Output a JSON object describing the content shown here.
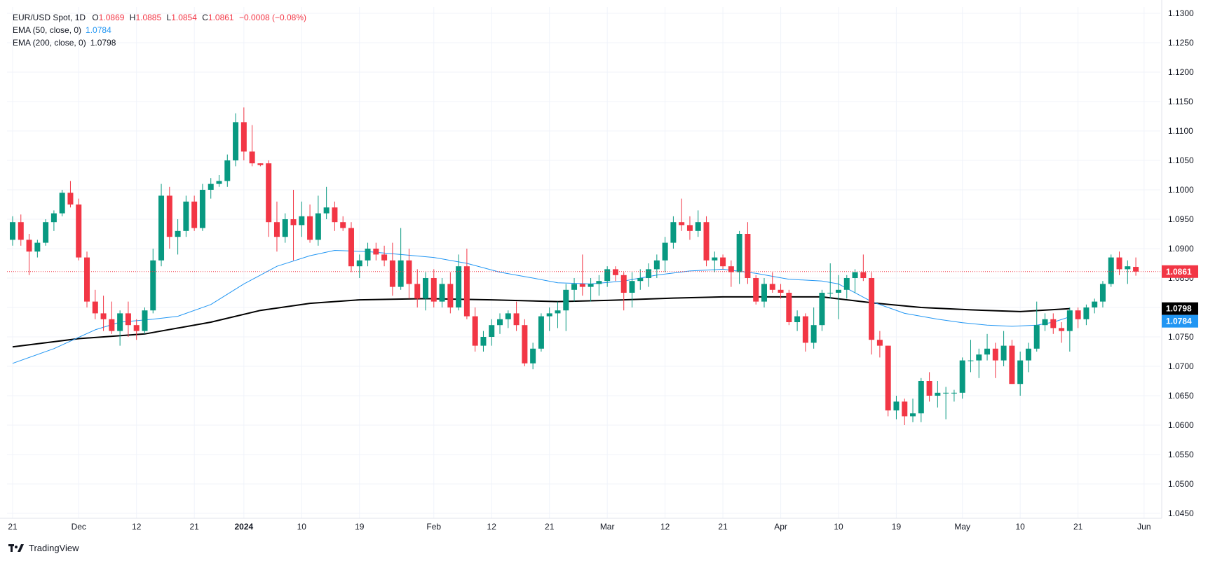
{
  "legend": {
    "symbol": "EUR/USD Spot, 1D",
    "open_label": "O",
    "open": "1.0869",
    "high_label": "H",
    "high": "1.0885",
    "low_label": "L",
    "low": "1.0854",
    "close_label": "C",
    "close": "1.0861",
    "change": "−0.0008 (−0.08%)",
    "ema50_label": "EMA (50, close, 0)",
    "ema50_value": "1.0784",
    "ema200_label": "EMA (200, close, 0)",
    "ema200_value": "1.0798"
  },
  "brand": {
    "name": "TradingView",
    "icon": "tradingview-logo-icon"
  },
  "colors": {
    "up": "#089981",
    "down": "#f23645",
    "ema50": "#2196f3",
    "ema200": "#000000",
    "grid": "#f0f3fa",
    "text": "#131722"
  },
  "chart_data": {
    "type": "candlestick",
    "title": "",
    "ylim": [
      1.045,
      1.13
    ],
    "y_ticks": [
      "1.1300",
      "1.1250",
      "1.1200",
      "1.1150",
      "1.1100",
      "1.1050",
      "1.1000",
      "1.0950",
      "1.0900",
      "1.0850",
      "1.0800",
      "1.0750",
      "1.0700",
      "1.0650",
      "1.0600",
      "1.0550",
      "1.0500",
      "1.0450"
    ],
    "x_ticks": [
      {
        "label": "21",
        "bar": 0
      },
      {
        "label": "Dec",
        "bar": 8
      },
      {
        "label": "12",
        "bar": 15
      },
      {
        "label": "21",
        "bar": 22
      },
      {
        "label": "2024",
        "bar": 28
      },
      {
        "label": "10",
        "bar": 35
      },
      {
        "label": "19",
        "bar": 42
      },
      {
        "label": "Feb",
        "bar": 51
      },
      {
        "label": "12",
        "bar": 58
      },
      {
        "label": "21",
        "bar": 65
      },
      {
        "label": "Mar",
        "bar": 72
      },
      {
        "label": "12",
        "bar": 79
      },
      {
        "label": "21",
        "bar": 86
      },
      {
        "label": "Apr",
        "bar": 93
      },
      {
        "label": "10",
        "bar": 100
      },
      {
        "label": "19",
        "bar": 107
      },
      {
        "label": "May",
        "bar": 115
      },
      {
        "label": "10",
        "bar": 122
      },
      {
        "label": "21",
        "bar": 129
      },
      {
        "label": "Jun",
        "bar": 137
      }
    ],
    "last_price": {
      "label": "1.0861",
      "value": 1.0861
    },
    "ema200_tag": {
      "label": "1.0798",
      "value": 1.0798
    },
    "ema50_tag": {
      "label": "1.0784",
      "value": 1.0784
    },
    "candles": [
      [
        1.0915,
        1.0955,
        1.0905,
        1.0945
      ],
      [
        1.0945,
        1.0958,
        1.0905,
        1.0915
      ],
      [
        1.0915,
        1.0925,
        1.0855,
        1.0895
      ],
      [
        1.0895,
        1.0915,
        1.0885,
        1.091
      ],
      [
        1.091,
        1.095,
        1.0905,
        1.0945
      ],
      [
        1.0945,
        1.0965,
        1.093,
        1.096
      ],
      [
        1.096,
        1.1,
        1.0955,
        1.0995
      ],
      [
        1.0995,
        1.1015,
        1.097,
        1.0975
      ],
      [
        1.0975,
        1.0985,
        1.088,
        1.0885
      ],
      [
        1.0885,
        1.0895,
        1.08,
        1.081
      ],
      [
        1.081,
        1.083,
        1.078,
        1.079
      ],
      [
        1.079,
        1.082,
        1.076,
        1.078
      ],
      [
        1.078,
        1.081,
        1.0755,
        1.076
      ],
      [
        1.076,
        1.0795,
        1.0735,
        1.079
      ],
      [
        1.079,
        1.081,
        1.075,
        1.077
      ],
      [
        1.077,
        1.078,
        1.0745,
        1.076
      ],
      [
        1.076,
        1.08,
        1.0755,
        1.0795
      ],
      [
        1.0795,
        1.09,
        1.079,
        1.088
      ],
      [
        1.088,
        1.101,
        1.087,
        1.099
      ],
      [
        1.099,
        1.1005,
        1.09,
        1.092
      ],
      [
        1.092,
        1.095,
        1.089,
        1.093
      ],
      [
        1.093,
        1.099,
        1.092,
        1.098
      ],
      [
        1.098,
        1.099,
        1.093,
        1.0935
      ],
      [
        1.0935,
        1.101,
        1.093,
        1.1
      ],
      [
        1.1,
        1.102,
        1.0985,
        1.101
      ],
      [
        1.101,
        1.1025,
        1.1005,
        1.1015
      ],
      [
        1.1015,
        1.106,
        1.1005,
        1.105
      ],
      [
        1.105,
        1.113,
        1.104,
        1.1115
      ],
      [
        1.1115,
        1.114,
        1.105,
        1.1065
      ],
      [
        1.1065,
        1.111,
        1.104,
        1.1045
      ],
      [
        1.1045,
        1.1045,
        1.104,
        1.1042
      ],
      [
        1.1045,
        1.105,
        1.092,
        1.0945
      ],
      [
        1.0945,
        1.098,
        1.0895,
        1.092
      ],
      [
        1.092,
        1.096,
        1.091,
        1.095
      ],
      [
        1.095,
        1.1,
        1.088,
        1.094
      ],
      [
        1.094,
        1.098,
        1.092,
        1.0955
      ],
      [
        1.0955,
        1.0975,
        1.091,
        1.0915
      ],
      [
        1.0915,
        1.099,
        1.0905,
        1.096
      ],
      [
        1.096,
        1.1005,
        1.095,
        1.097
      ],
      [
        1.097,
        1.098,
        1.093,
        1.0945
      ],
      [
        1.0945,
        1.0955,
        1.093,
        1.0935
      ],
      [
        1.0935,
        1.0945,
        1.086,
        1.087
      ],
      [
        1.087,
        1.089,
        1.085,
        1.088
      ],
      [
        1.088,
        1.091,
        1.087,
        1.09
      ],
      [
        1.09,
        1.091,
        1.088,
        1.089
      ],
      [
        1.089,
        1.0905,
        1.087,
        1.088
      ],
      [
        1.088,
        1.091,
        1.082,
        1.0835
      ],
      [
        1.0835,
        1.0935,
        1.083,
        1.088
      ],
      [
        1.088,
        1.09,
        1.0815,
        1.084
      ],
      [
        1.084,
        1.0865,
        1.08,
        1.0815
      ],
      [
        1.0815,
        1.086,
        1.0795,
        1.085
      ],
      [
        1.085,
        1.0865,
        1.08,
        1.081
      ],
      [
        1.081,
        1.085,
        1.08,
        1.084
      ],
      [
        1.084,
        1.086,
        1.079,
        1.08
      ],
      [
        1.08,
        1.089,
        1.0795,
        1.087
      ],
      [
        1.087,
        1.09,
        1.078,
        1.0785
      ],
      [
        1.0785,
        1.08,
        1.0725,
        1.0735
      ],
      [
        1.0735,
        1.076,
        1.0725,
        1.075
      ],
      [
        1.075,
        1.078,
        1.0735,
        1.077
      ],
      [
        1.077,
        1.079,
        1.0755,
        1.078
      ],
      [
        1.078,
        1.0795,
        1.0765,
        1.079
      ],
      [
        1.079,
        1.081,
        1.076,
        1.077
      ],
      [
        1.077,
        1.078,
        1.07,
        1.0705
      ],
      [
        1.0705,
        1.074,
        1.0695,
        1.073
      ],
      [
        1.073,
        1.079,
        1.0725,
        1.0785
      ],
      [
        1.0785,
        1.08,
        1.076,
        1.079
      ],
      [
        1.079,
        1.081,
        1.0765,
        1.0795
      ],
      [
        1.0795,
        1.084,
        1.076,
        1.083
      ],
      [
        1.083,
        1.085,
        1.081,
        1.084
      ],
      [
        1.084,
        1.089,
        1.082,
        1.0835
      ],
      [
        1.0835,
        1.085,
        1.081,
        1.084
      ],
      [
        1.084,
        1.0855,
        1.082,
        1.0845
      ],
      [
        1.0845,
        1.087,
        1.0835,
        1.0865
      ],
      [
        1.0865,
        1.087,
        1.0845,
        1.0855
      ],
      [
        1.0855,
        1.086,
        1.0795,
        1.0825
      ],
      [
        1.0825,
        1.086,
        1.08,
        1.0845
      ],
      [
        1.0845,
        1.0865,
        1.083,
        1.085
      ],
      [
        1.085,
        1.0875,
        1.0835,
        1.0865
      ],
      [
        1.0865,
        1.089,
        1.085,
        1.088
      ],
      [
        1.088,
        1.092,
        1.086,
        1.091
      ],
      [
        1.091,
        1.0955,
        1.09,
        1.0945
      ],
      [
        1.0945,
        1.0985,
        1.093,
        1.094
      ],
      [
        1.094,
        1.0955,
        1.0915,
        1.093
      ],
      [
        1.093,
        1.0965,
        1.092,
        1.0945
      ],
      [
        1.0945,
        1.0955,
        1.087,
        1.088
      ],
      [
        1.088,
        1.0895,
        1.086,
        1.0885
      ],
      [
        1.0885,
        1.089,
        1.0865,
        1.087
      ],
      [
        1.087,
        1.088,
        1.0835,
        1.086
      ],
      [
        1.086,
        1.093,
        1.084,
        1.0925
      ],
      [
        1.0925,
        1.0945,
        1.084,
        1.085
      ],
      [
        1.085,
        1.0855,
        1.0805,
        1.081
      ],
      [
        1.081,
        1.085,
        1.08,
        1.084
      ],
      [
        1.084,
        1.086,
        1.0825,
        1.083
      ],
      [
        1.083,
        1.084,
        1.0815,
        1.0825
      ],
      [
        1.0825,
        1.083,
        1.077,
        1.0775
      ],
      [
        1.0775,
        1.0795,
        1.076,
        1.0785
      ],
      [
        1.0785,
        1.079,
        1.0725,
        1.074
      ],
      [
        1.074,
        1.08,
        1.073,
        1.077
      ],
      [
        1.077,
        1.083,
        1.076,
        1.0825
      ],
      [
        1.0825,
        1.0875,
        1.0815,
        1.0825
      ],
      [
        1.0825,
        1.0855,
        1.078,
        1.083
      ],
      [
        1.083,
        1.0855,
        1.0815,
        1.085
      ],
      [
        1.085,
        1.0865,
        1.0825,
        1.086
      ],
      [
        1.086,
        1.089,
        1.0845,
        1.085
      ],
      [
        1.085,
        1.086,
        1.072,
        1.0745
      ],
      [
        1.0745,
        1.076,
        1.0715,
        1.0735
      ],
      [
        1.0735,
        1.0735,
        1.0615,
        1.0625
      ],
      [
        1.0625,
        1.065,
        1.061,
        1.064
      ],
      [
        1.064,
        1.0645,
        1.06,
        1.0615
      ],
      [
        1.0615,
        1.0645,
        1.0605,
        1.062
      ],
      [
        1.062,
        1.068,
        1.0605,
        1.0675
      ],
      [
        1.0675,
        1.069,
        1.064,
        1.065
      ],
      [
        1.065,
        1.0675,
        1.063,
        1.0655
      ],
      [
        1.0655,
        1.0665,
        1.061,
        1.0655
      ],
      [
        1.0655,
        1.066,
        1.064,
        1.0655
      ],
      [
        1.0655,
        1.0715,
        1.0645,
        1.071
      ],
      [
        1.071,
        1.0745,
        1.069,
        1.071
      ],
      [
        1.071,
        1.073,
        1.068,
        1.072
      ],
      [
        1.072,
        1.0755,
        1.071,
        1.073
      ],
      [
        1.073,
        1.074,
        1.068,
        1.071
      ],
      [
        1.071,
        1.076,
        1.07,
        1.0735
      ],
      [
        1.0735,
        1.0745,
        1.067,
        1.067
      ],
      [
        1.067,
        1.0725,
        1.065,
        1.071
      ],
      [
        1.071,
        1.074,
        1.069,
        1.073
      ],
      [
        1.073,
        1.081,
        1.0725,
        1.077
      ],
      [
        1.077,
        1.079,
        1.076,
        1.078
      ],
      [
        1.078,
        1.079,
        1.0755,
        1.0765
      ],
      [
        1.0765,
        1.0775,
        1.074,
        1.076
      ],
      [
        1.076,
        1.08,
        1.0725,
        1.0795
      ],
      [
        1.0795,
        1.08,
        1.0765,
        1.078
      ],
      [
        1.078,
        1.0805,
        1.077,
        1.08
      ],
      [
        1.08,
        1.0815,
        1.079,
        1.081
      ],
      [
        1.081,
        1.0845,
        1.08,
        1.084
      ],
      [
        1.084,
        1.089,
        1.0835,
        1.0885
      ],
      [
        1.0885,
        1.0895,
        1.0855,
        1.0865
      ],
      [
        1.0865,
        1.088,
        1.084,
        1.087
      ],
      [
        1.0869,
        1.0885,
        1.0854,
        1.0861
      ]
    ],
    "ema50": [
      [
        0,
        1.0705
      ],
      [
        5,
        1.073
      ],
      [
        10,
        1.0762
      ],
      [
        13,
        1.0775
      ],
      [
        17,
        1.078
      ],
      [
        20,
        1.0785
      ],
      [
        24,
        1.0805
      ],
      [
        28,
        1.084
      ],
      [
        32,
        1.087
      ],
      [
        36,
        1.0888
      ],
      [
        39,
        1.0897
      ],
      [
        43,
        1.0895
      ],
      [
        47,
        1.089
      ],
      [
        51,
        1.0885
      ],
      [
        55,
        1.0875
      ],
      [
        59,
        1.086
      ],
      [
        63,
        1.085
      ],
      [
        66,
        1.0842
      ],
      [
        70,
        1.084
      ],
      [
        74,
        1.0845
      ],
      [
        78,
        1.0855
      ],
      [
        82,
        1.0862
      ],
      [
        86,
        1.0865
      ],
      [
        90,
        1.0858
      ],
      [
        94,
        1.0848
      ],
      [
        98,
        1.0845
      ],
      [
        100,
        1.084
      ],
      [
        104,
        1.081
      ],
      [
        108,
        1.079
      ],
      [
        112,
        1.078
      ],
      [
        115,
        1.0774
      ],
      [
        118,
        1.077
      ],
      [
        121,
        1.0768
      ],
      [
        124,
        1.077
      ],
      [
        126,
        1.0775
      ],
      [
        128,
        1.0784
      ]
    ],
    "ema200": [
      [
        0,
        1.0733
      ],
      [
        8,
        1.0747
      ],
      [
        16,
        1.0755
      ],
      [
        24,
        1.0775
      ],
      [
        30,
        1.0795
      ],
      [
        36,
        1.0807
      ],
      [
        42,
        1.0813
      ],
      [
        50,
        1.0815
      ],
      [
        58,
        1.0813
      ],
      [
        66,
        1.081
      ],
      [
        72,
        1.0812
      ],
      [
        80,
        1.0816
      ],
      [
        86,
        1.0818
      ],
      [
        92,
        1.0818
      ],
      [
        98,
        1.0818
      ],
      [
        104,
        1.0808
      ],
      [
        110,
        1.08
      ],
      [
        116,
        1.0796
      ],
      [
        122,
        1.0793
      ],
      [
        128,
        1.0798
      ]
    ]
  }
}
